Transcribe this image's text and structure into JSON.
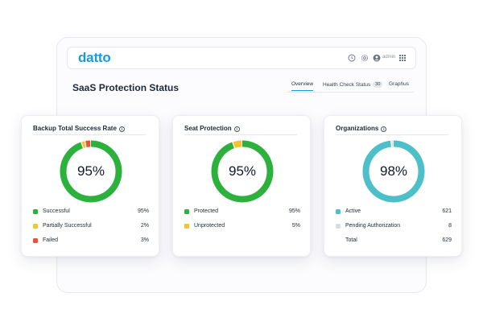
{
  "app": {
    "logo": "datto",
    "user_label": "admin",
    "icons": [
      "help-icon",
      "settings-icon",
      "user-avatar-icon",
      "app-grid-icon"
    ]
  },
  "page": {
    "title": "SaaS Protection Status"
  },
  "tabs": [
    {
      "label": "Overview",
      "active": true
    },
    {
      "label": "Health Check Status",
      "badge": "30",
      "active": false
    },
    {
      "label": "Graphus",
      "active": false
    }
  ],
  "colors": {
    "brand": "#199bd8",
    "green": "#2db13d",
    "yellow": "#f3c42d",
    "red": "#e8543b",
    "teal": "#4cbfc9",
    "gray": "#d9dde4"
  },
  "cards": [
    {
      "title": "Backup Total Success Rate",
      "center": "95%",
      "ring": [
        {
          "value": 95,
          "color": "#2db13d"
        },
        {
          "value": 2,
          "color": "#f3c42d"
        },
        {
          "value": 3,
          "color": "#e8543b"
        }
      ],
      "legend": [
        {
          "label": "Successful",
          "value": "95%",
          "color": "#2db13d"
        },
        {
          "label": "Partially Successful",
          "value": "2%",
          "color": "#f3c42d"
        },
        {
          "label": "Failed",
          "value": "3%",
          "color": "#e8543b"
        }
      ]
    },
    {
      "title": "Seat Protection",
      "center": "95%",
      "ring": [
        {
          "value": 95,
          "color": "#2db13d"
        },
        {
          "value": 5,
          "color": "#f3c42d"
        }
      ],
      "legend": [
        {
          "label": "Protected",
          "value": "95%",
          "color": "#2db13d"
        },
        {
          "label": "Unprotected",
          "value": "5%",
          "color": "#f3c42d"
        }
      ]
    },
    {
      "title": "Organizations",
      "center": "98%",
      "ring": [
        {
          "value": 621,
          "color": "#4cbfc9"
        },
        {
          "value": 8,
          "color": "#d9dde4"
        }
      ],
      "legend": [
        {
          "label": "Active",
          "value": "621",
          "color": "#4cbfc9"
        },
        {
          "label": "Pending Authorization",
          "value": "8",
          "color": "#d9dde4"
        },
        {
          "label": "Total",
          "value": "629",
          "color": ""
        }
      ]
    }
  ]
}
